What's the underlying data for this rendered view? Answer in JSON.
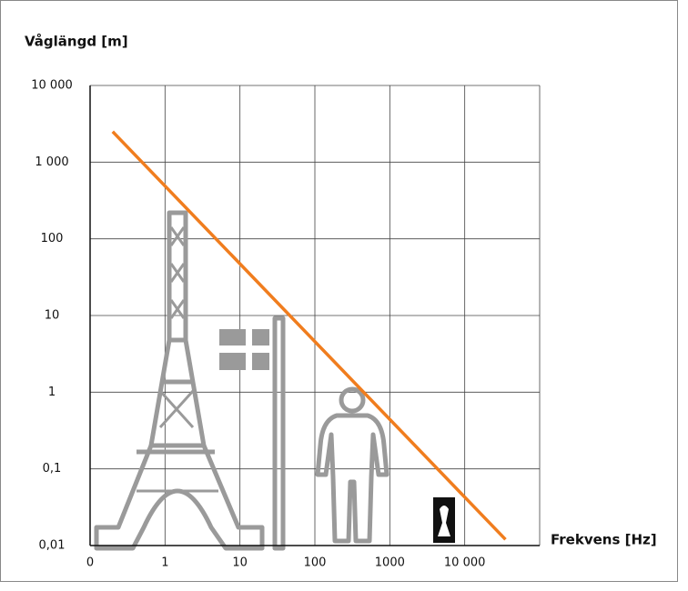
{
  "chart_data": {
    "type": "line",
    "title": "Våglängd [m]",
    "x_label": "Frekvens [Hz]",
    "x": [
      0.2,
      35000
    ],
    "values": [
      2500,
      0.012
    ],
    "color": "#f07d1e",
    "xlog": true,
    "ylog": true,
    "grid": true,
    "xlim": [
      0.1,
      100000
    ],
    "xticks": [
      {
        "value": 0.1,
        "label": "0"
      },
      1,
      10,
      100,
      1000,
      {
        "value": 10000,
        "label": "10 000"
      }
    ],
    "ylim": [
      0.01,
      10000
    ],
    "yticks": [
      {
        "value": 0.01,
        "label": "0,01"
      },
      {
        "value": 0.1,
        "label": "0,1"
      },
      1,
      10,
      100,
      {
        "value": 1000,
        "label": "1 000"
      },
      {
        "value": 10000,
        "label": "10 000"
      }
    ]
  }
}
